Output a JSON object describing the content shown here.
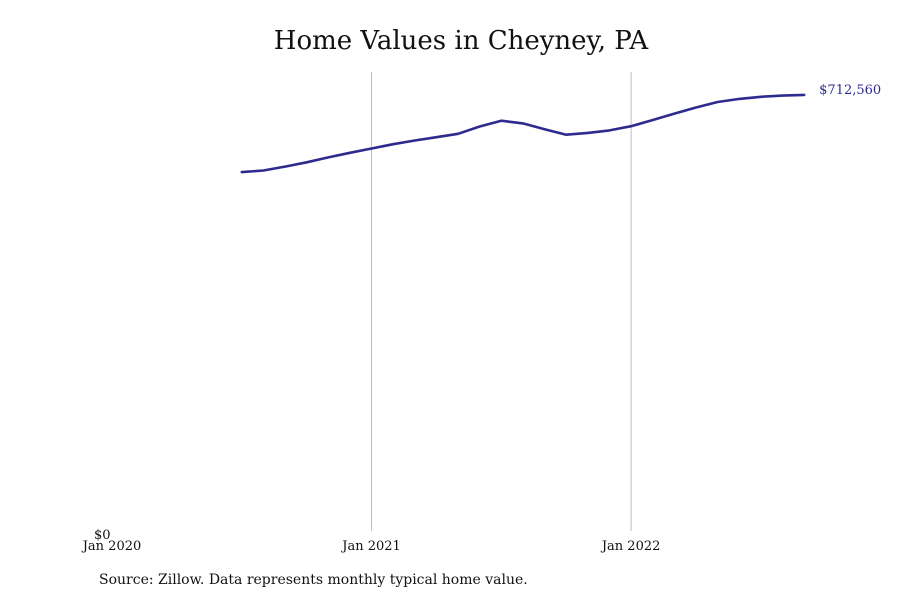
{
  "chart_data": {
    "type": "line",
    "title": "Home Values in Cheyney, PA",
    "xlabel": "",
    "ylabel": "",
    "ylim": [
      0,
      750000
    ],
    "y_tick_labels": [
      {
        "value": 0,
        "label": "$0"
      }
    ],
    "x_ticks": [
      {
        "date": "2020-01",
        "label": "Jan 2020",
        "gridline": false
      },
      {
        "date": "2021-01",
        "label": "Jan 2021",
        "gridline": true
      },
      {
        "date": "2022-01",
        "label": "Jan 2022",
        "gridline": true
      }
    ],
    "end_label": "$712,560",
    "line_color": "#2e2b8f",
    "series": [
      {
        "x": [
          "2020-07",
          "2020-08",
          "2020-09",
          "2020-10",
          "2020-11",
          "2020-12",
          "2021-01",
          "2021-02",
          "2021-03",
          "2021-04",
          "2021-05",
          "2021-06",
          "2021-07",
          "2021-08",
          "2021-09",
          "2021-10",
          "2021-11",
          "2021-12",
          "2022-01",
          "2022-02",
          "2022-03",
          "2022-04",
          "2022-05",
          "2022-06",
          "2022-07",
          "2022-08",
          "2022-09"
        ],
        "values": [
          586500,
          589000,
          595500,
          602500,
          610500,
          618000,
          625000,
          632000,
          638000,
          643500,
          649000,
          661000,
          670500,
          666000,
          656500,
          647500,
          650500,
          654500,
          661500,
          671500,
          682000,
          692000,
          701000,
          706000,
          709500,
          711500,
          712560
        ]
      }
    ]
  },
  "source_text": "Source: Zillow. Data represents monthly typical home value."
}
